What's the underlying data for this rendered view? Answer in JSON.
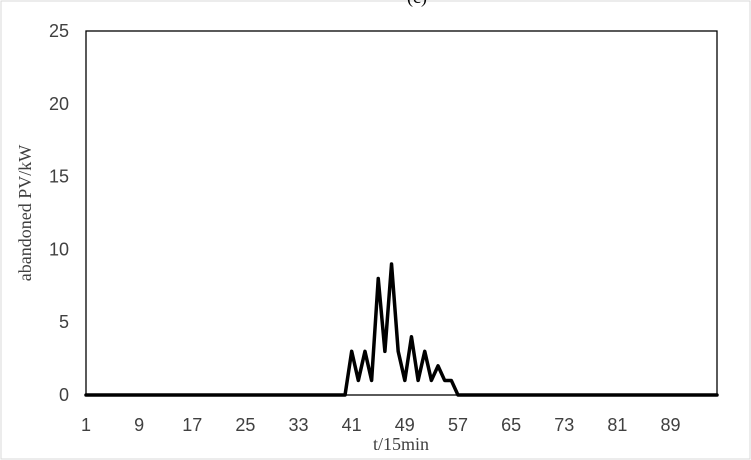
{
  "chart_data": {
    "type": "line",
    "title": "(c)",
    "xlabel": "t/15min",
    "ylabel": "abandoned PV/kW",
    "ylim": [
      0,
      25
    ],
    "yticks": [
      "0",
      "5",
      "10",
      "15",
      "20",
      "25"
    ],
    "xlim": [
      1,
      96
    ],
    "xticks": [
      "1",
      "9",
      "17",
      "25",
      "33",
      "41",
      "49",
      "57",
      "65",
      "73",
      "81",
      "89"
    ],
    "grid": false,
    "legend": "none",
    "series": [
      {
        "color": "#000000",
        "x": [
          1,
          2,
          3,
          4,
          5,
          6,
          7,
          8,
          9,
          10,
          11,
          12,
          13,
          14,
          15,
          16,
          17,
          18,
          19,
          20,
          21,
          22,
          23,
          24,
          25,
          26,
          27,
          28,
          29,
          30,
          31,
          32,
          33,
          34,
          35,
          36,
          37,
          38,
          39,
          40,
          41,
          42,
          43,
          44,
          45,
          46,
          47,
          48,
          49,
          50,
          51,
          52,
          53,
          54,
          55,
          56,
          57,
          58,
          59,
          60,
          61,
          62,
          63,
          64,
          65,
          66,
          67,
          68,
          69,
          70,
          71,
          72,
          73,
          74,
          75,
          76,
          77,
          78,
          79,
          80,
          81,
          82,
          83,
          84,
          85,
          86,
          87,
          88,
          89,
          90,
          91,
          92,
          93,
          94,
          95,
          96
        ],
        "values": [
          0,
          0,
          0,
          0,
          0,
          0,
          0,
          0,
          0,
          0,
          0,
          0,
          0,
          0,
          0,
          0,
          0,
          0,
          0,
          0,
          0,
          0,
          0,
          0,
          0,
          0,
          0,
          0,
          0,
          0,
          0,
          0,
          0,
          0,
          0,
          0,
          0,
          0,
          0,
          0,
          3,
          1,
          3,
          1,
          8,
          3,
          9,
          3,
          1,
          4,
          1,
          3,
          1,
          2,
          1,
          1,
          0,
          0,
          0,
          0,
          0,
          0,
          0,
          0,
          0,
          0,
          0,
          0,
          0,
          0,
          0,
          0,
          0,
          0,
          0,
          0,
          0,
          0,
          0,
          0,
          0,
          0,
          0,
          0,
          0,
          0,
          0,
          0,
          0,
          0,
          0,
          0,
          0,
          0,
          0,
          0
        ]
      }
    ]
  }
}
